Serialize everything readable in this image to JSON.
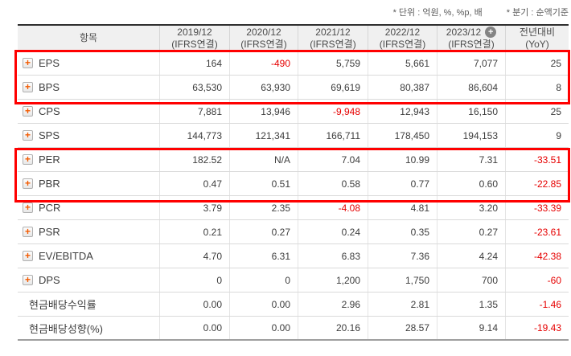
{
  "notes": {
    "unit": "* 단위 : 억원, %, %p, 배",
    "basis": "* 분기 : 순액기준"
  },
  "table": {
    "item_header": "항목",
    "columns": [
      {
        "period": "2019/12",
        "standard": "(IFRS연결)"
      },
      {
        "period": "2020/12",
        "standard": "(IFRS연결)"
      },
      {
        "period": "2021/12",
        "standard": "(IFRS연결)"
      },
      {
        "period": "2022/12",
        "standard": "(IFRS연결)"
      },
      {
        "period": "2023/12",
        "standard": "(IFRS연결)",
        "badge_icon": "plus-circle-icon"
      },
      {
        "period": "전년대비",
        "standard": "(YoY)"
      }
    ],
    "rows": [
      {
        "label": "EPS",
        "expand_icon": true,
        "values": [
          "164",
          "-490",
          "5,759",
          "5,661",
          "7,077",
          "25"
        ]
      },
      {
        "label": "BPS",
        "expand_icon": true,
        "values": [
          "63,530",
          "63,930",
          "69,619",
          "80,387",
          "86,604",
          "8"
        ]
      },
      {
        "label": "CPS",
        "expand_icon": true,
        "values": [
          "7,881",
          "13,946",
          "-9,948",
          "12,943",
          "16,150",
          "25"
        ]
      },
      {
        "label": "SPS",
        "expand_icon": true,
        "values": [
          "144,773",
          "121,341",
          "166,711",
          "178,450",
          "194,153",
          "9"
        ]
      },
      {
        "label": "PER",
        "expand_icon": true,
        "values": [
          "182.52",
          "N/A",
          "7.04",
          "10.99",
          "7.31",
          "-33.51"
        ]
      },
      {
        "label": "PBR",
        "expand_icon": true,
        "values": [
          "0.47",
          "0.51",
          "0.58",
          "0.77",
          "0.60",
          "-22.85"
        ]
      },
      {
        "label": "PCR",
        "expand_icon": true,
        "values": [
          "3.79",
          "2.35",
          "-4.08",
          "4.81",
          "3.20",
          "-33.39"
        ]
      },
      {
        "label": "PSR",
        "expand_icon": true,
        "values": [
          "0.21",
          "0.27",
          "0.24",
          "0.35",
          "0.27",
          "-23.61"
        ]
      },
      {
        "label": "EV/EBITDA",
        "expand_icon": true,
        "values": [
          "4.70",
          "6.31",
          "6.83",
          "7.36",
          "4.24",
          "-42.38"
        ]
      },
      {
        "label": "DPS",
        "expand_icon": true,
        "values": [
          "0",
          "0",
          "1,200",
          "1,750",
          "700",
          "-60"
        ]
      },
      {
        "label": "현금배당수익률",
        "expand_icon": false,
        "values": [
          "0.00",
          "0.00",
          "2.96",
          "2.81",
          "1.35",
          "-1.46"
        ]
      },
      {
        "label": "현금배당성향(%)",
        "expand_icon": false,
        "values": [
          "0.00",
          "0.00",
          "20.16",
          "28.57",
          "9.14",
          "-19.43"
        ]
      }
    ]
  },
  "icons": {
    "row_expand": "expand-plus-icon",
    "header_badge": "plus-circle-icon"
  },
  "colors": {
    "negative_value": "#e60000",
    "annotation_box": "#ff0000",
    "expand_icon_plus": "#f25a00",
    "header_background": "#f0f0f0"
  },
  "annotations": [
    {
      "name": "highlight-eps-bps",
      "rows": [
        "EPS",
        "BPS"
      ]
    },
    {
      "name": "highlight-per-pbr",
      "rows": [
        "PER",
        "PBR"
      ]
    }
  ]
}
